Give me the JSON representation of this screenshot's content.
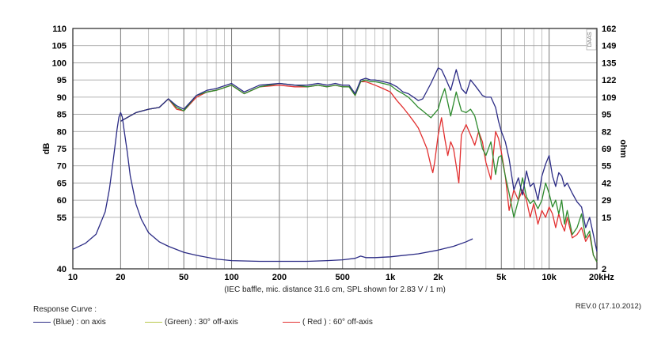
{
  "chart_data": {
    "type": "line",
    "title": "",
    "caption": "(IEC baffle, mic. distance 31.6 cm, SPL shown for 2.83 V / 1 m)",
    "ylabel": "dB",
    "y2label": "ohm",
    "xscale": "log",
    "xlim": [
      10,
      20000
    ],
    "ylim": [
      40,
      110
    ],
    "y2lim": [
      2,
      162
    ],
    "grid": true,
    "watermark": "DAAS",
    "x_ticks": [
      {
        "v": 10,
        "l": "10"
      },
      {
        "v": 20,
        "l": "20"
      },
      {
        "v": 50,
        "l": "50"
      },
      {
        "v": 100,
        "l": "100"
      },
      {
        "v": 200,
        "l": "200"
      },
      {
        "v": 500,
        "l": "500"
      },
      {
        "v": 1000,
        "l": "1k"
      },
      {
        "v": 2000,
        "l": "2k"
      },
      {
        "v": 5000,
        "l": "5k"
      },
      {
        "v": 10000,
        "l": "10k"
      },
      {
        "v": 20000,
        "l": "20kHz"
      }
    ],
    "y_ticks": [
      "110",
      "105",
      "100",
      "95",
      "90",
      "85",
      "80",
      "75",
      "70",
      "65",
      "60",
      "55",
      "40"
    ],
    "y_ticks_values": [
      110,
      105,
      100,
      95,
      90,
      85,
      80,
      75,
      70,
      65,
      60,
      55,
      40
    ],
    "y2_ticks": [
      "162",
      "149",
      "135",
      "122",
      "109",
      "95",
      "82",
      "69",
      "55",
      "42",
      "29",
      "15",
      "2"
    ],
    "series": [
      {
        "name": "(Blue) : on axis",
        "color": "#2b2b85",
        "x": [
          20,
          25,
          30,
          35,
          40,
          45,
          50,
          60,
          70,
          80,
          100,
          120,
          150,
          200,
          250,
          300,
          350,
          400,
          450,
          500,
          550,
          600,
          650,
          700,
          750,
          800,
          900,
          1000,
          1100,
          1200,
          1300,
          1400,
          1500,
          1600,
          1800,
          2000,
          2100,
          2200,
          2400,
          2600,
          2800,
          3000,
          3200,
          3400,
          3600,
          3800,
          4000,
          4300,
          4600,
          4800,
          5000,
          5300,
          5600,
          6000,
          6400,
          6800,
          7200,
          7600,
          8000,
          8500,
          9000,
          9500,
          10000,
          10500,
          11000,
          11500,
          12000,
          12500,
          13000,
          14000,
          15000,
          16000,
          17000,
          18000,
          19000,
          20000
        ],
        "y": [
          83,
          85.5,
          86.5,
          87,
          89.5,
          87.5,
          86.5,
          90.5,
          92,
          92.5,
          94,
          91.5,
          93.5,
          94,
          93.5,
          93.5,
          94,
          93.5,
          94,
          93.5,
          93.5,
          91,
          95,
          95.5,
          95,
          95,
          94.5,
          94,
          93,
          91.5,
          91,
          90,
          89,
          89.5,
          94,
          98.5,
          98,
          96,
          92,
          98,
          92.5,
          91,
          95,
          93.5,
          92,
          90.5,
          90,
          90,
          87,
          83,
          80,
          77,
          72,
          63,
          66.5,
          61.5,
          68.5,
          64,
          65,
          60,
          67,
          70.5,
          73,
          67,
          64,
          68,
          67,
          64,
          65,
          62,
          59.5,
          58,
          52,
          55,
          50,
          45
        ]
      },
      {
        "name": "(Green) : 30° off-axis",
        "color": "#2e8b2e",
        "x": [
          20,
          25,
          30,
          35,
          40,
          45,
          50,
          60,
          70,
          80,
          100,
          120,
          150,
          200,
          250,
          300,
          350,
          400,
          450,
          500,
          550,
          600,
          650,
          700,
          750,
          800,
          900,
          1000,
          1100,
          1200,
          1300,
          1400,
          1500,
          1600,
          1800,
          2000,
          2100,
          2200,
          2400,
          2600,
          2800,
          3000,
          3200,
          3400,
          3600,
          3800,
          4000,
          4300,
          4600,
          4800,
          5000,
          5300,
          5600,
          6000,
          6400,
          6800,
          7200,
          7600,
          8000,
          8500,
          9000,
          9500,
          10000,
          10500,
          11000,
          11500,
          12000,
          12500,
          13000,
          14000,
          15000,
          16000,
          17000,
          18000,
          19000,
          20000
        ],
        "y": [
          83,
          85.5,
          86.5,
          87,
          89.5,
          87,
          86,
          90.5,
          91.5,
          92,
          93.5,
          91,
          93,
          94,
          93.5,
          93,
          93.5,
          93,
          93.5,
          93,
          93,
          90.5,
          94.5,
          95,
          94.5,
          94.5,
          94,
          93.5,
          92,
          91,
          90,
          88.5,
          87,
          86,
          84,
          86.5,
          90,
          92.5,
          84.5,
          91.5,
          86,
          85.5,
          86.5,
          84.5,
          80,
          75,
          73,
          77,
          67.5,
          72.5,
          73,
          67,
          62,
          55,
          60,
          66.5,
          61,
          59,
          60,
          57.5,
          60,
          65,
          62,
          58,
          60,
          56,
          60,
          53,
          57,
          50,
          52,
          56,
          49,
          51,
          44,
          42
        ]
      },
      {
        "name": "( Red ) : 60° off-axis",
        "color": "#e23030",
        "x": [
          20,
          25,
          30,
          35,
          40,
          45,
          50,
          60,
          70,
          80,
          100,
          120,
          150,
          200,
          250,
          300,
          350,
          400,
          450,
          500,
          550,
          600,
          650,
          700,
          750,
          800,
          900,
          1000,
          1100,
          1200,
          1300,
          1400,
          1500,
          1600,
          1700,
          1800,
          1850,
          1900,
          2000,
          2100,
          2200,
          2300,
          2400,
          2500,
          2600,
          2700,
          2800,
          3000,
          3200,
          3400,
          3600,
          3800,
          4000,
          4300,
          4600,
          4800,
          5000,
          5300,
          5600,
          6000,
          6400,
          6800,
          7200,
          7600,
          8000,
          8500,
          9000,
          9500,
          10000,
          10500,
          11000,
          11500,
          12000,
          12500,
          13000,
          14000,
          15000,
          16000,
          17000,
          18000,
          19000,
          20000
        ],
        "y": [
          83,
          85.5,
          86.5,
          87,
          89.5,
          86.5,
          86,
          90,
          91.5,
          92,
          93.5,
          91,
          93,
          93.5,
          93,
          93,
          93.5,
          93,
          93.5,
          93,
          93,
          90.5,
          94.5,
          94.5,
          94,
          93.5,
          92.5,
          91.5,
          89,
          87,
          85,
          83,
          81,
          78,
          75,
          70,
          68,
          71,
          79,
          84,
          78,
          73,
          77,
          75,
          70,
          65,
          79,
          82,
          79,
          76,
          80,
          77,
          71,
          66,
          80,
          78,
          74,
          67,
          57,
          63,
          60,
          63,
          60,
          55,
          59,
          53,
          57,
          55,
          58,
          56,
          52,
          56,
          53,
          51,
          55,
          49,
          50,
          52,
          48,
          50,
          44,
          42
        ]
      },
      {
        "name": "impedance",
        "color": "#2b2b85",
        "axis": "y2",
        "x": [
          10,
          12,
          14,
          16,
          17,
          18,
          19,
          19.5,
          20,
          20.5,
          21,
          22,
          23,
          25,
          27,
          30,
          35,
          40,
          50,
          60,
          80,
          100,
          150,
          200,
          300,
          400,
          500,
          600,
          650,
          700,
          800,
          1000,
          1500,
          2000,
          2500,
          3000,
          3300
        ],
        "y2": [
          15,
          19,
          25,
          40,
          55,
          75,
          95,
          103,
          106,
          103,
          95,
          80,
          64,
          45,
          35,
          26,
          20,
          17,
          13,
          11,
          8.5,
          7.5,
          7,
          7,
          7,
          7.5,
          8,
          9,
          10.5,
          9.5,
          9.5,
          10,
          12,
          14.5,
          17,
          20,
          22
        ]
      }
    ],
    "legend_title": "Response Curve :",
    "legend": [
      {
        "label": "(Blue)  : on axis",
        "color": "#2b2b85"
      },
      {
        "label": "(Green) : 30° off-axis",
        "color": "#b8c84a"
      },
      {
        "label": "( Red ) : 60° off-axis",
        "color": "#e23030"
      }
    ],
    "legend_placement": "bottom-left",
    "revision": "REV.0 (17.10.2012)"
  }
}
